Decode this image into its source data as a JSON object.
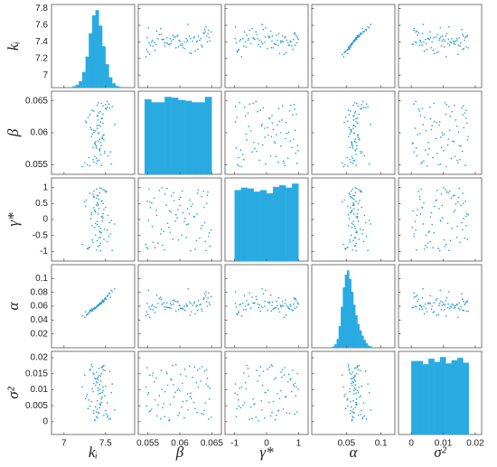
{
  "chart_data": {
    "type": "scatter_matrix",
    "color": "#1f9bd6",
    "hist_color": "#29abe2",
    "variables": [
      {
        "label": "kᵢ",
        "lim": [
          6.85,
          7.85
        ],
        "xticks": [
          7,
          7.5
        ],
        "yticks": [
          7,
          7.2,
          7.4,
          7.6,
          7.8
        ],
        "bins": [
          7.1,
          7.14,
          7.18,
          7.22,
          7.26,
          7.3,
          7.34,
          7.38,
          7.42,
          7.46,
          7.5,
          7.54,
          7.58,
          7.62,
          7.66,
          7.7
        ],
        "counts": [
          2,
          5,
          12,
          30,
          60,
          105,
          140,
          150,
          120,
          80,
          45,
          20,
          8,
          3,
          1
        ],
        "samples": [
          7.42,
          7.35,
          7.51,
          7.38,
          7.45,
          7.29,
          7.47,
          7.4,
          7.56,
          7.33,
          7.44,
          7.39,
          7.48,
          7.26,
          7.41,
          7.53,
          7.36,
          7.43,
          7.31,
          7.46,
          7.4,
          7.58,
          7.37,
          7.44,
          7.49,
          7.34,
          7.42,
          7.22,
          7.45,
          7.39,
          7.52,
          7.41,
          7.3,
          7.47,
          7.38,
          7.43,
          7.55,
          7.36,
          7.4,
          7.46,
          7.32,
          7.44,
          7.5,
          7.37,
          7.41,
          7.28,
          7.48,
          7.42,
          7.35,
          7.61,
          7.39,
          7.45,
          7.33,
          7.43,
          7.47,
          7.4,
          7.25,
          7.52,
          7.38,
          7.44,
          7.36,
          7.49,
          7.41,
          7.31,
          7.46,
          7.43,
          7.54,
          7.37,
          7.4,
          7.45,
          7.34,
          7.5,
          7.42,
          7.27,
          7.39,
          7.47,
          7.44,
          7.36,
          7.57,
          7.41
        ]
      },
      {
        "label": "β",
        "lim": [
          0.0535,
          0.0665
        ],
        "xticks": [
          0.055,
          0.06,
          0.065
        ],
        "yticks": [
          0.055,
          0.06,
          0.065
        ],
        "bins": [
          0.0545,
          0.05555,
          0.0566,
          0.05765,
          0.0587,
          0.05975,
          0.0608,
          0.06185,
          0.0629,
          0.06395,
          0.065
        ],
        "counts": [
          97,
          93,
          93,
          100,
          99,
          96,
          95,
          93,
          93,
          100
        ],
        "samples": [
          0.0612,
          0.0558,
          0.0637,
          0.0581,
          0.0549,
          0.0624,
          0.0596,
          0.0643,
          0.057,
          0.0605,
          0.0633,
          0.0552,
          0.0589,
          0.0618,
          0.0647,
          0.0564,
          0.0601,
          0.0575,
          0.0628,
          0.0593,
          0.0556,
          0.0641,
          0.0584,
          0.061,
          0.0568,
          0.0635,
          0.0599,
          0.0547,
          0.0622,
          0.0579,
          0.0649,
          0.0587,
          0.0561,
          0.0615,
          0.0603,
          0.0572,
          0.0639,
          0.0554,
          0.0626,
          0.0591,
          0.0608,
          0.0566,
          0.0644,
          0.0583,
          0.062,
          0.055,
          0.0597,
          0.0631,
          0.0577,
          0.0613,
          0.056,
          0.0646,
          0.0594,
          0.0573,
          0.0629,
          0.0607,
          0.0553,
          0.064,
          0.0586,
          0.0617,
          0.0634,
          0.0571,
          0.06,
          0.0548,
          0.0623,
          0.059,
          0.0645,
          0.0563,
          0.0611,
          0.058,
          0.0598,
          0.0638,
          0.0557,
          0.0616,
          0.0576,
          0.0642,
          0.0585,
          0.0604,
          0.0551,
          0.0627
        ]
      },
      {
        "label": "γ*",
        "lim": [
          -1.3,
          1.3
        ],
        "xticks": [
          -1,
          0,
          1
        ],
        "yticks": [
          -1,
          -0.5,
          0,
          0.5,
          1
        ],
        "bins": [
          -1,
          -0.8,
          -0.6,
          -0.4,
          -0.2,
          0,
          0.2,
          0.4,
          0.6,
          0.8,
          1
        ],
        "counts": [
          88,
          91,
          90,
          86,
          88,
          84,
          92,
          94,
          91,
          96
        ],
        "samples": [
          0.34,
          -0.71,
          0.88,
          -0.12,
          0.57,
          -0.93,
          0.05,
          0.76,
          -0.45,
          0.21,
          -0.28,
          0.95,
          -0.62,
          0.41,
          -0.84,
          0.13,
          0.69,
          -0.37,
          0.82,
          -0.05,
          0.52,
          -0.97,
          0.27,
          -0.56,
          0.91,
          -0.19,
          0.63,
          -0.78,
          0.08,
          0.45,
          -0.33,
          0.74,
          -0.88,
          0.18,
          -0.49,
          0.99,
          -0.1,
          0.37,
          -0.66,
          0.59,
          0.03,
          -0.74,
          0.86,
          -0.25,
          0.48,
          -0.91,
          0.31,
          -0.58,
          0.79,
          -0.14,
          0.67,
          -0.42,
          0.15,
          -0.81,
          0.93,
          -0.06,
          0.55,
          -0.69,
          0.24,
          -0.98,
          0.72,
          -0.31,
          0.44,
          -0.87,
          0.1,
          0.84,
          -0.53,
          0.29,
          -0.16,
          0.97,
          -0.64,
          0.38,
          -0.22,
          0.61,
          -0.95,
          0.5,
          -0.4,
          0.89,
          -0.03,
          0.17
        ]
      },
      {
        "label": "α",
        "lim": [
          0,
          0.12
        ],
        "xticks": [
          0.05,
          0.1
        ],
        "yticks": [
          0.02,
          0.04,
          0.06,
          0.08,
          0.1
        ],
        "bins": [
          0.03,
          0.033,
          0.036,
          0.039,
          0.042,
          0.045,
          0.048,
          0.051,
          0.054,
          0.057,
          0.06,
          0.063,
          0.066,
          0.069,
          0.072,
          0.075,
          0.078,
          0.081,
          0.084,
          0.087,
          0.09
        ],
        "counts": [
          3,
          8,
          20,
          50,
          95,
          140,
          170,
          180,
          160,
          130,
          100,
          75,
          55,
          40,
          28,
          18,
          10,
          5,
          3,
          1
        ],
        "samples": [
          0.061,
          0.055,
          0.07,
          0.058,
          0.064,
          0.049,
          0.066,
          0.06,
          0.073,
          0.056,
          0.063,
          0.059,
          0.068,
          0.052,
          0.062,
          0.076,
          0.057,
          0.065,
          0.054,
          0.067,
          0.06,
          0.081,
          0.058,
          0.063,
          0.071,
          0.053,
          0.061,
          0.046,
          0.064,
          0.059,
          0.074,
          0.062,
          0.051,
          0.066,
          0.057,
          0.063,
          0.078,
          0.056,
          0.06,
          0.069,
          0.054,
          0.064,
          0.072,
          0.058,
          0.061,
          0.048,
          0.067,
          0.062,
          0.055,
          0.085,
          0.059,
          0.065,
          0.053,
          0.063,
          0.068,
          0.06,
          0.044,
          0.075,
          0.057,
          0.064,
          0.056,
          0.07,
          0.061,
          0.052,
          0.066,
          0.063,
          0.079,
          0.058,
          0.06,
          0.065,
          0.055,
          0.072,
          0.062,
          0.047,
          0.059,
          0.067,
          0.064,
          0.057,
          0.083,
          0.061
        ]
      },
      {
        "label": "σ²",
        "lim": [
          -0.004,
          0.022
        ],
        "xticks": [
          0,
          0.01,
          0.02
        ],
        "yticks": [
          0,
          0.005,
          0.01,
          0.015,
          0.02
        ],
        "bins": [
          0,
          0.0018,
          0.0036,
          0.0054,
          0.0072,
          0.009,
          0.0108,
          0.0126,
          0.0144,
          0.0162,
          0.018
        ],
        "counts": [
          92,
          92,
          88,
          95,
          91,
          97,
          89,
          93,
          96,
          90
        ],
        "samples": [
          0.0087,
          0.0152,
          0.0023,
          0.0114,
          0.0169,
          0.0041,
          0.0098,
          0.0135,
          0.0009,
          0.0063,
          0.0127,
          0.0031,
          0.0176,
          0.0072,
          0.0105,
          0.0018,
          0.0148,
          0.0056,
          0.0161,
          0.0092,
          0.0039,
          0.0118,
          0.0006,
          0.0143,
          0.0081,
          0.0172,
          0.0027,
          0.0109,
          0.006,
          0.0155,
          0.0014,
          0.0131,
          0.0068,
          0.0174,
          0.0046,
          0.0101,
          0.0158,
          0.0034,
          0.0122,
          0.0077,
          0.0164,
          0.0052,
          0.0111,
          0.0003,
          0.0139,
          0.0085,
          0.002,
          0.0167,
          0.0094,
          0.0037,
          0.0125,
          0.0071,
          0.0178,
          0.0044,
          0.0108,
          0.0012,
          0.0146,
          0.0059,
          0.0133,
          0.0089,
          0.0026,
          0.016,
          0.0097,
          0.0049,
          0.0171,
          0.0116,
          0.0008,
          0.0137,
          0.0065,
          0.015,
          0.0103,
          0.0035,
          0.0144,
          0.0079,
          0.0016,
          0.0163,
          0.0054,
          0.012,
          0.0091,
          0.0029
        ]
      }
    ]
  }
}
